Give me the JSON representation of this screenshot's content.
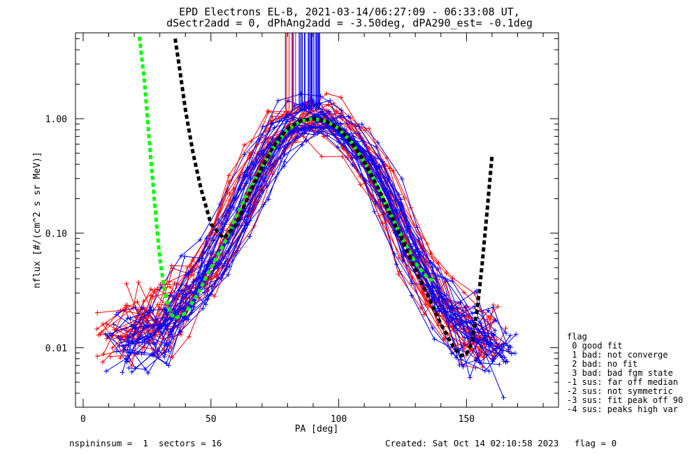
{
  "header": {
    "title_line1": "EPD Electrons EL-B, 2021-03-14/06:27:09 - 06:33:08 UT,",
    "title_line2": "dSectr2add = 0, dPhAng2add = -3.50deg, dPA290_est=  -0.1deg"
  },
  "footer": {
    "left": "nspininsum =  1  sectors = 16",
    "right": "Created: Sat Oct 14 02:10:58 2023   flag = 0"
  },
  "legend": {
    "title": "flag",
    "items": [
      " 0 good fit",
      " 1 bad: not converge",
      " 2 bad: no fit",
      " 3 bad: bad fgm state",
      "-1 sus: far off median",
      "-2 sus: not symmetric",
      "-3 sus: fit peak off 90",
      "-4 sus: peaks high var"
    ]
  },
  "colors": {
    "red": "#ff0000",
    "blue": "#0000ff",
    "green": "#00ff00",
    "black": "#000000"
  },
  "chart_data": {
    "type": "line",
    "xlabel": "PA [deg]",
    "ylabel": "nflux [#/(cm^2 s sr MeV)]",
    "xlim": [
      -3,
      186
    ],
    "ylim_log10": [
      -2.52,
      0.75
    ],
    "y_scale": "log",
    "x_ticks": [
      0,
      50,
      100,
      150
    ],
    "y_ticks": [
      {
        "value": 0.01,
        "label": "0.01"
      },
      {
        "value": 0.1,
        "label": "0.10"
      },
      {
        "value": 1.0,
        "label": "1.00"
      }
    ],
    "grid": false,
    "reference_curves": [
      {
        "color": "green",
        "style": "dashed",
        "x": [
          22,
          24,
          26,
          28,
          30,
          32,
          34,
          36,
          40,
          45,
          50,
          55,
          60,
          65,
          70,
          75,
          80,
          85,
          90,
          95,
          100,
          105,
          110,
          115,
          120,
          125,
          130,
          135,
          138
        ],
        "y": [
          5.2,
          2.1,
          0.6,
          0.18,
          0.06,
          0.03,
          0.02,
          0.018,
          0.02,
          0.03,
          0.05,
          0.08,
          0.14,
          0.24,
          0.38,
          0.58,
          0.8,
          0.95,
          1.0,
          0.95,
          0.82,
          0.62,
          0.42,
          0.26,
          0.15,
          0.09,
          0.055,
          0.04,
          0.038
        ]
      },
      {
        "color": "black",
        "style": "dashed",
        "x": [
          36,
          38,
          40,
          43,
          46,
          50,
          55,
          60,
          65,
          70,
          75,
          80,
          85,
          90,
          95,
          100,
          105,
          110,
          115,
          120,
          125,
          130,
          135,
          140,
          145,
          148,
          150,
          152,
          154,
          156,
          158,
          160
        ],
        "y": [
          5.0,
          2.5,
          1.2,
          0.5,
          0.25,
          0.12,
          0.09,
          0.12,
          0.22,
          0.38,
          0.6,
          0.82,
          0.96,
          1.0,
          0.95,
          0.82,
          0.62,
          0.42,
          0.26,
          0.15,
          0.085,
          0.048,
          0.028,
          0.016,
          0.01,
          0.0085,
          0.0088,
          0.011,
          0.02,
          0.05,
          0.15,
          0.48
        ]
      }
    ],
    "series": [
      {
        "color": "red",
        "x": [
          12,
          23,
          27,
          33,
          40,
          47,
          55,
          62,
          70,
          78,
          86,
          93,
          100,
          107,
          115,
          122,
          130,
          138,
          146,
          154,
          160
        ],
        "y": [
          0.012,
          0.014,
          0.016,
          0.018,
          0.025,
          0.04,
          0.08,
          0.18,
          0.42,
          0.75,
          0.95,
          0.98,
          0.86,
          0.6,
          0.32,
          0.15,
          0.06,
          0.028,
          0.016,
          0.012,
          0.011
        ]
      },
      {
        "color": "blue",
        "x": [
          14,
          22,
          29,
          36,
          44,
          51,
          59,
          66,
          74,
          81,
          89,
          96,
          104,
          111,
          119,
          126,
          134,
          141,
          149,
          156,
          163
        ],
        "y": [
          0.011,
          0.012,
          0.014,
          0.02,
          0.032,
          0.06,
          0.13,
          0.3,
          0.62,
          0.9,
          1.0,
          0.92,
          0.72,
          0.44,
          0.2,
          0.085,
          0.04,
          0.022,
          0.014,
          0.011,
          0.01
        ]
      }
    ],
    "spikes": {
      "x_range": [
        79,
        93
      ],
      "from_y": 1.2
    }
  }
}
